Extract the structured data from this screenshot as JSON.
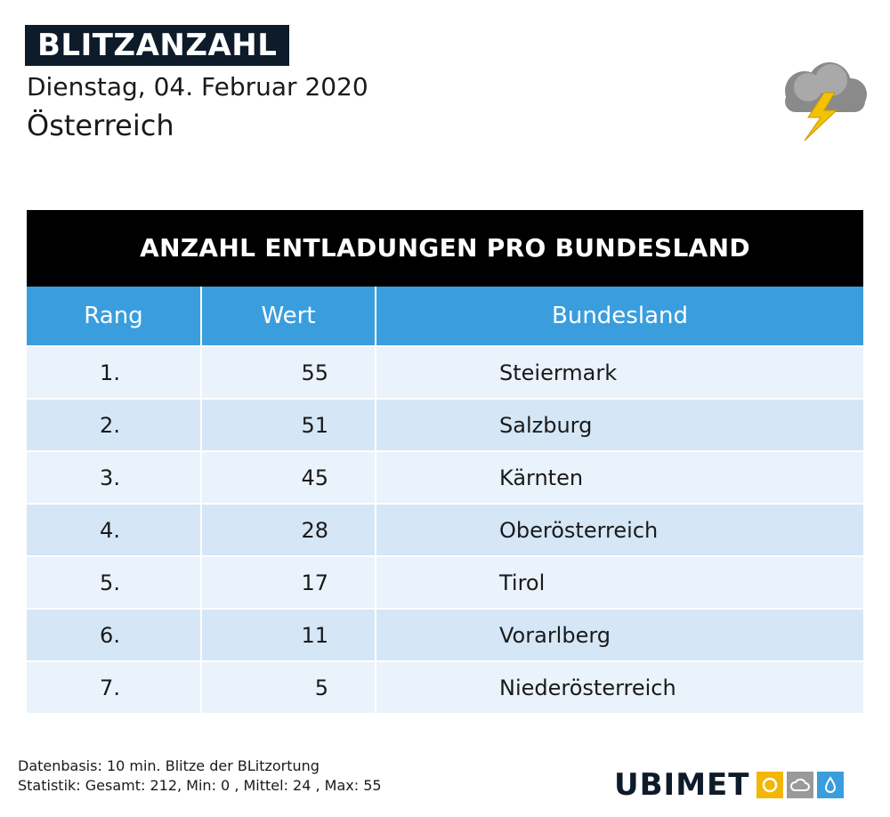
{
  "header": {
    "title": "BLITZANZAHL",
    "date": "Dienstag, 04. Februar 2020",
    "region": "Österreich",
    "icon": "thunderstorm-icon"
  },
  "table": {
    "title": "ANZAHL ENTLADUNGEN PRO BUNDESLAND",
    "columns": [
      "Rang",
      "Wert",
      "Bundesland"
    ],
    "rows": [
      {
        "rank": "1.",
        "value": "55",
        "region": "Steiermark"
      },
      {
        "rank": "2.",
        "value": "51",
        "region": "Salzburg"
      },
      {
        "rank": "3.",
        "value": "45",
        "region": "Kärnten"
      },
      {
        "rank": "4.",
        "value": "28",
        "region": "Oberösterreich"
      },
      {
        "rank": "5.",
        "value": "17",
        "region": "Tirol"
      },
      {
        "rank": "6.",
        "value": "11",
        "region": "Vorarlberg"
      },
      {
        "rank": "7.",
        "value": "5",
        "region": "Niederösterreich"
      }
    ]
  },
  "footer": {
    "line1": "Datenbasis: 10 min. Blitze der BLitzortung",
    "line2": "Statistik: Gesamt: 212, Min: 0 , Mittel: 24 , Max: 55"
  },
  "logo": {
    "text_a": "UBI",
    "text_b": "MET",
    "colors": {
      "sun": "#f2b705",
      "cloud": "#9a9a9a",
      "drop": "#3a9ede",
      "dark": "#0d1b2a"
    }
  }
}
